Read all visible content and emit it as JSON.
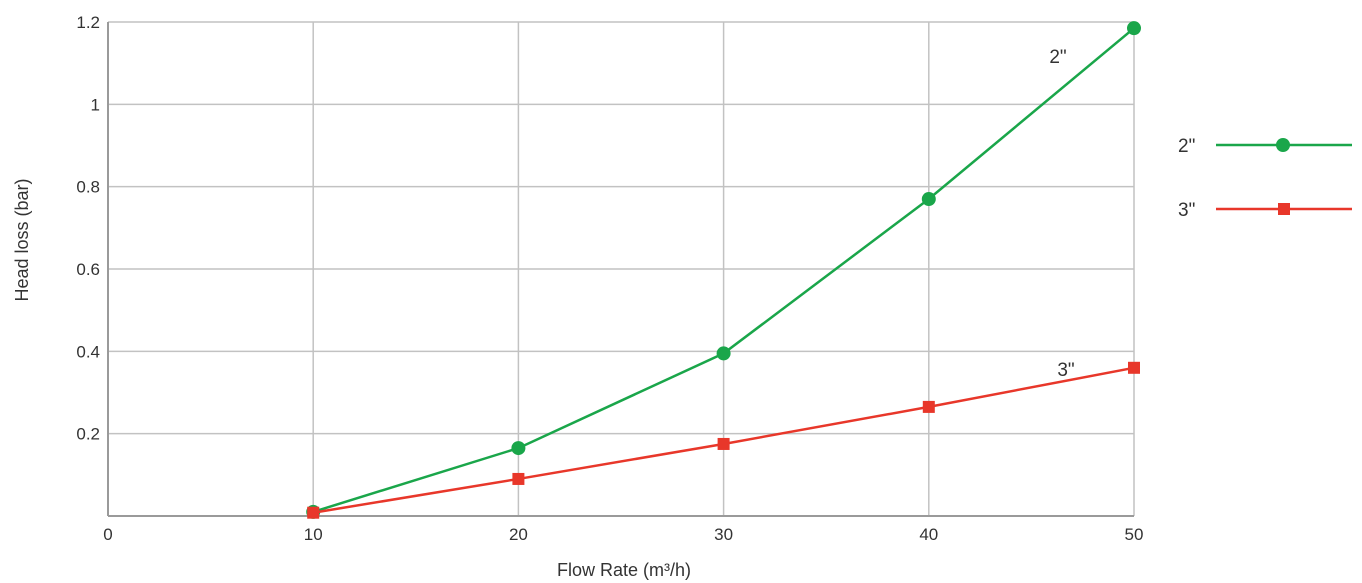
{
  "chart_data": {
    "type": "line",
    "title": "",
    "xlabel": "Flow Rate (m³/h)",
    "ylabel": "Head loss (bar)",
    "xlim": [
      0,
      50
    ],
    "ylim": [
      0,
      1.2
    ],
    "x_ticks": [
      "0",
      "10",
      "20",
      "30",
      "40",
      "50"
    ],
    "y_ticks": [
      "0.2",
      "0.4",
      "0.6",
      "0.8",
      "1",
      "1.2"
    ],
    "x_tick_values": [
      0,
      10,
      20,
      30,
      40,
      50
    ],
    "y_tick_values": [
      0.2,
      0.4,
      0.6,
      0.8,
      1.0,
      1.2
    ],
    "grid": true,
    "legend_position": "right",
    "series": [
      {
        "name": "2\"",
        "color": "#1aa64a",
        "marker": "circle",
        "x": [
          10,
          20,
          30,
          40,
          50
        ],
        "values": [
          0.01,
          0.165,
          0.395,
          0.77,
          1.185
        ]
      },
      {
        "name": "3\"",
        "color": "#e8372a",
        "marker": "square",
        "x": [
          10,
          20,
          30,
          40,
          50
        ],
        "values": [
          0.008,
          0.09,
          0.175,
          0.265,
          0.36
        ]
      }
    ]
  }
}
